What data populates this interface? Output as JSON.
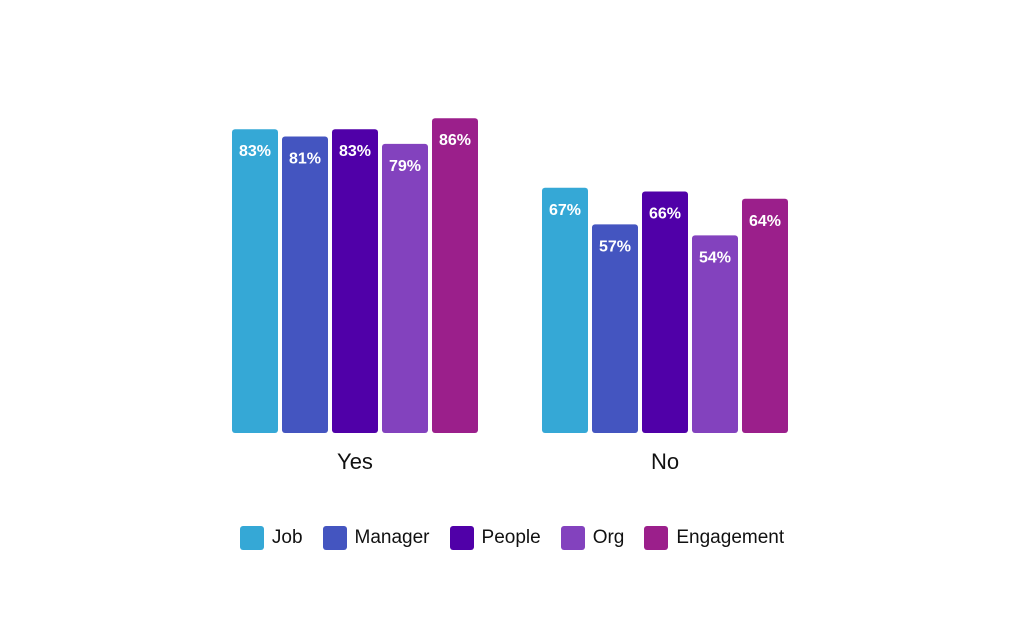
{
  "chart_data": {
    "type": "bar",
    "categories": [
      "Yes",
      "No"
    ],
    "series": [
      {
        "name": "Job",
        "color": "#35a8d6",
        "values": [
          83,
          67
        ]
      },
      {
        "name": "Manager",
        "color": "#4455c0",
        "values": [
          81,
          57
        ]
      },
      {
        "name": "People",
        "color": "#5000a8",
        "values": [
          83,
          66
        ]
      },
      {
        "name": "Org",
        "color": "#8342be",
        "values": [
          79,
          54
        ]
      },
      {
        "name": "Engagement",
        "color": "#9b1f8b",
        "values": [
          86,
          64
        ]
      }
    ],
    "value_suffix": "%",
    "ylim": [
      0,
      100
    ],
    "title": "",
    "xlabel": "",
    "ylabel": "",
    "grid": false,
    "legend_position": "bottom"
  }
}
